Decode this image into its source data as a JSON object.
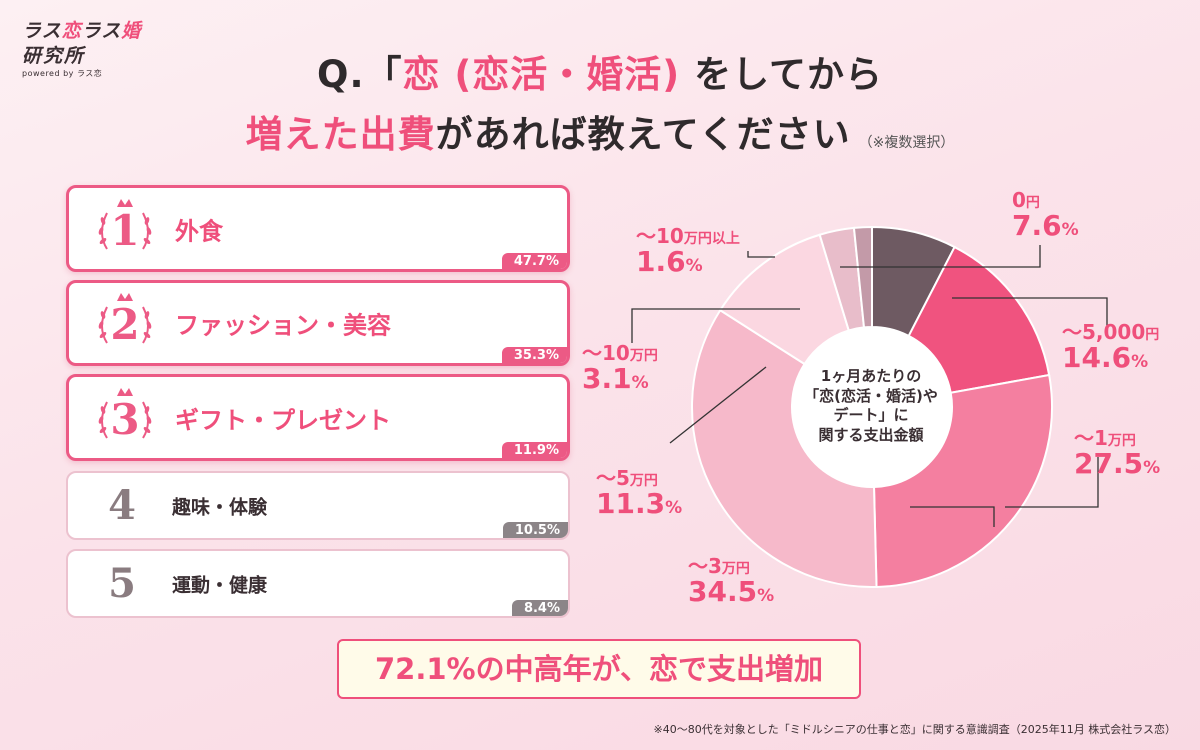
{
  "logo": {
    "line1a": "ラス",
    "line1b": "恋",
    "line1c": "ラス",
    "line1d": "婚",
    "line2": "研究所",
    "sub": "powered by ラス恋"
  },
  "title": {
    "q": "Q.",
    "bracket_open": "「",
    "koi": "恋",
    "paren": " (恋活・婚活)",
    "rest1": " をしてから",
    "highlight": "増えた出費",
    "rest2": "があれば教えてください",
    "note": "（※複数選択）"
  },
  "ranking": [
    {
      "rank": "1",
      "label": "外食",
      "value": "47.7%"
    },
    {
      "rank": "2",
      "label": "ファッション・美容",
      "value": "35.3%"
    },
    {
      "rank": "3",
      "label": "ギフト・プレゼント",
      "value": "11.9%"
    },
    {
      "rank": "4",
      "label": "趣味・体験",
      "value": "10.5%"
    },
    {
      "rank": "5",
      "label": "運動・健康",
      "value": "8.4%"
    }
  ],
  "chart_data": {
    "type": "pie",
    "title": "1ヶ月あたりの「恋(恋活・婚活)やデート」に関する支出金額",
    "center_lines": [
      "1ヶ月あたりの",
      "「恋(恋活・婚活)や",
      "デート」に",
      "関する支出金額"
    ],
    "slices": [
      {
        "name": "0円",
        "value": 7.6,
        "color": "#6e5a62"
      },
      {
        "name": "〜5,000円",
        "value": 14.6,
        "color": "#f0537f"
      },
      {
        "name": "〜1万円",
        "value": 27.5,
        "color": "#f47fa0"
      },
      {
        "name": "〜3万円",
        "value": 34.5,
        "color": "#f6b9ca"
      },
      {
        "name": "〜5万円",
        "value": 11.3,
        "color": "#fbd7e1"
      },
      {
        "name": "〜10万円",
        "value": 3.1,
        "color": "#e8bdca"
      },
      {
        "name": "〜10万円以上",
        "value": 1.6,
        "color": "#c39aa8"
      }
    ],
    "labels": [
      {
        "cat": "0",
        "unit": "円",
        "num": "7.6",
        "pct": "%"
      },
      {
        "cat": "〜5,000",
        "unit": "円",
        "num": "14.6",
        "pct": "%"
      },
      {
        "cat": "〜1",
        "unit": "万円",
        "num": "27.5",
        "pct": "%"
      },
      {
        "cat": "〜3",
        "unit": "万円",
        "num": "34.5",
        "pct": "%"
      },
      {
        "cat": "〜5",
        "unit": "万円",
        "num": "11.3",
        "pct": "%"
      },
      {
        "cat": "〜10",
        "unit": "万円",
        "num": "3.1",
        "pct": "%"
      },
      {
        "cat": "〜10",
        "unit": "万円以上",
        "num": "1.6",
        "pct": "%"
      }
    ]
  },
  "conclusion": "72.1%の中高年が、恋で支出増加",
  "footnote": "※40〜80代を対象とした「ミドルシニアの仕事と恋」に関する意識調査（2025年11月 株式会社ラス恋）",
  "colors": {
    "accent": "#ef4f7b",
    "dark": "#3a2f33",
    "gray_badge": "#8c8588"
  }
}
